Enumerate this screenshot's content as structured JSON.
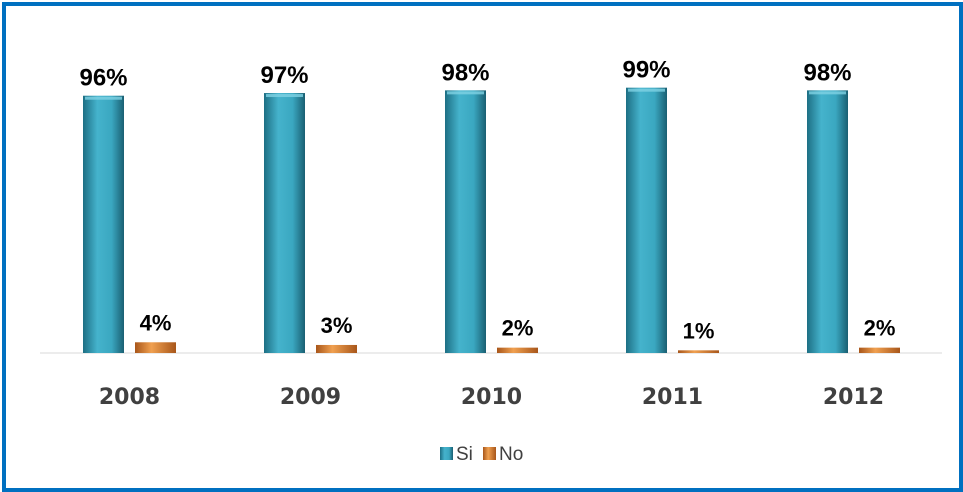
{
  "chart_data": {
    "type": "bar",
    "categories": [
      "2008",
      "2009",
      "2010",
      "2011",
      "2012"
    ],
    "series": [
      {
        "name": "Si",
        "values": [
          96,
          97,
          98,
          99,
          98
        ],
        "labels": [
          "96%",
          "97%",
          "98%",
          "99%",
          "98%"
        ],
        "color": "#3aa7c0"
      },
      {
        "name": "No",
        "values": [
          4,
          3,
          2,
          1,
          2
        ],
        "labels": [
          "4%",
          "3%",
          "2%",
          "1%",
          "2%"
        ],
        "color": "#e08a3c"
      }
    ],
    "ylim": [
      0,
      100
    ],
    "grid": false,
    "legend_position": "bottom"
  }
}
